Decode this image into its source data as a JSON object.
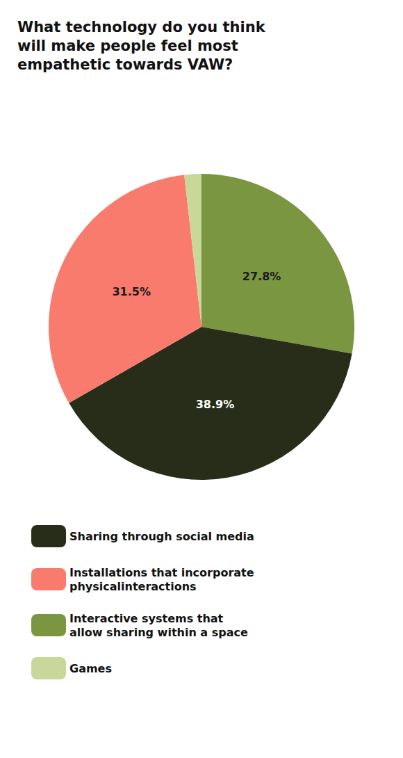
{
  "chart_data": {
    "type": "pie",
    "title": "What technology do you think\nwill make people feel most\nempathetic towards VAW?",
    "categories": [
      "Interactive systems that\nallow sharing within a space",
      "Sharing through social media",
      "Installations that incorporate\nphysicalinteractions",
      "Games"
    ],
    "values": [
      27.8,
      38.9,
      31.5,
      1.8
    ],
    "value_labels": [
      "27.8%",
      "38.9%",
      "31.5%",
      null
    ],
    "colors": [
      "#7a9640",
      "#272d18",
      "#f97b6e",
      "#c8d89a"
    ],
    "data_labels": true,
    "legend": "bottom"
  }
}
